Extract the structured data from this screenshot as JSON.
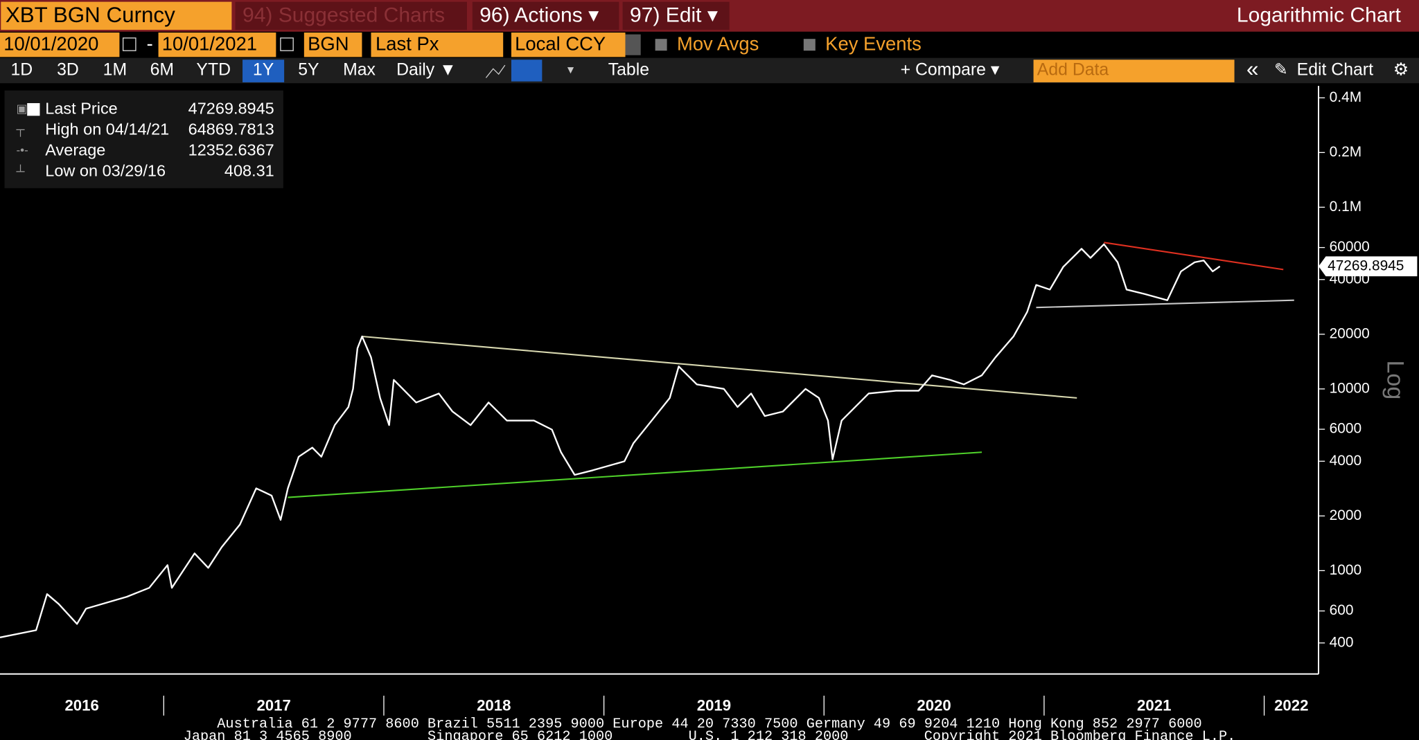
{
  "toolbar": {
    "security": "XBT BGN Curncy",
    "suggested": "94) Suggested Charts",
    "actions": "96) Actions ▾",
    "edit": "97) Edit ▾",
    "mode": "Logarithmic Chart"
  },
  "controls": {
    "start_date": "10/01/2020",
    "dash": "-",
    "end_date": "10/01/2021",
    "source": "BGN",
    "field": "Last Px",
    "currency": "Local CCY",
    "mov_avgs": "Mov Avgs",
    "key_events": "Key Events"
  },
  "periods": [
    "1D",
    "3D",
    "1M",
    "6M",
    "YTD",
    "1Y",
    "5Y",
    "Max"
  ],
  "selected_period": "1Y",
  "frequency": "Daily ▼",
  "table": "Table",
  "compare": "+ Compare ▾",
  "add_data": "Add Data",
  "collapse": "«",
  "edit_chart": "Edit Chart",
  "chart_data": {
    "type": "line",
    "axis_label": "Log",
    "log_scale": true,
    "xlim": [
      2016.256,
      2022.247
    ],
    "xticks": [
      2016,
      2017,
      2018,
      2019,
      2020,
      2021,
      2022
    ],
    "ylim": [
      270,
      465000
    ],
    "yticks": [
      {
        "value": 400000,
        "label": "0.4M"
      },
      {
        "value": 200000,
        "label": "0.2M"
      },
      {
        "value": 100000,
        "label": "0.1M"
      },
      60000,
      40000,
      20000,
      10000,
      6000,
      4000,
      2000,
      1000,
      600,
      400
    ],
    "x": [
      2016.256,
      2016.42,
      2016.47,
      2016.523,
      2016.606,
      2016.647,
      2016.832,
      2016.934,
      2017.017,
      2017.037,
      2017.14,
      2017.202,
      2017.263,
      2017.346,
      2017.42,
      2017.49,
      2017.531,
      2017.564,
      2017.613,
      2017.675,
      2017.716,
      2017.777,
      2017.839,
      2017.86,
      2017.88,
      2017.901,
      2017.942,
      2017.983,
      2018.024,
      2018.045,
      2018.086,
      2018.147,
      2018.25,
      2018.312,
      2018.394,
      2018.476,
      2018.559,
      2018.682,
      2018.764,
      2018.805,
      2018.867,
      2018.949,
      2019.093,
      2019.134,
      2019.217,
      2019.299,
      2019.34,
      2019.422,
      2019.545,
      2019.607,
      2019.669,
      2019.731,
      2019.813,
      2019.916,
      2019.977,
      2020.018,
      2020.039,
      2020.08,
      2020.203,
      2020.327,
      2020.43,
      2020.491,
      2020.573,
      2020.635,
      2020.717,
      2020.779,
      2020.861,
      2020.923,
      2020.964,
      2021.026,
      2021.087,
      2021.17,
      2021.211,
      2021.272,
      2021.334,
      2021.375,
      2021.457,
      2021.56,
      2021.622,
      2021.684,
      2021.725,
      2021.766,
      2021.799
    ],
    "series": [
      {
        "name": "Last Price",
        "color": "#ffffff",
        "values": [
          429,
          470,
          743,
          655,
          509,
          618,
          718,
          804,
          1072,
          804,
          1245,
          1036,
          1346,
          1795,
          2839,
          2590,
          1901,
          2839,
          4236,
          4755,
          4236,
          6323,
          7950,
          10000,
          16740,
          19450,
          14930,
          8920,
          6323,
          11215,
          10000,
          8420,
          9440,
          7510,
          6323,
          8420,
          6696,
          6696,
          5970,
          4485,
          3365,
          3565,
          4000,
          5025,
          6696,
          8920,
          13310,
          10590,
          10000,
          7950,
          9440,
          7090,
          7510,
          10000,
          8920,
          6696,
          4100,
          6696,
          9440,
          9775,
          9775,
          11880,
          11215,
          10590,
          11880,
          14930,
          19450,
          26490,
          37320,
          35230,
          46970,
          59040,
          52610,
          62530,
          49790,
          35230,
          33300,
          30770,
          44330,
          49790,
          50940,
          44330,
          47270
        ]
      }
    ],
    "trendlines": [
      {
        "color": "#e03020",
        "x": [
          2021.272,
          2022.087
        ],
        "values": [
          63950,
          45390
        ]
      },
      {
        "color": "#c8c8c8",
        "x": [
          2020.964,
          2022.136
        ],
        "values": [
          28060,
          30770
        ]
      },
      {
        "color": "#d8d8b0",
        "x": [
          2017.901,
          2021.149
        ],
        "values": [
          19450,
          8920
        ]
      },
      {
        "color": "#4fd02a",
        "x": [
          2017.564,
          2020.717
        ],
        "values": [
          2529,
          4485
        ]
      }
    ],
    "last_value": 47269.8945,
    "stats": [
      {
        "label": "Last Price",
        "value": 47269.8945
      },
      {
        "label": "High on 04/14/21",
        "value": 64869.7813
      },
      {
        "label": "Average",
        "value": 12352.6367
      },
      {
        "label": "Low on 03/29/16",
        "value": 408.31
      }
    ]
  },
  "footer": [
    "Australia 61 2 9777 8600 Brazil 5511 2395 9000 Europe 44 20 7330 7500 Germany 49 69 9204 1210 Hong Kong 852 2977 6000",
    "Japan 81 3 4565 8900         Singapore 65 6212 1000         U.S. 1 212 318 2000         Copyright 2021 Bloomberg Finance L.P."
  ]
}
